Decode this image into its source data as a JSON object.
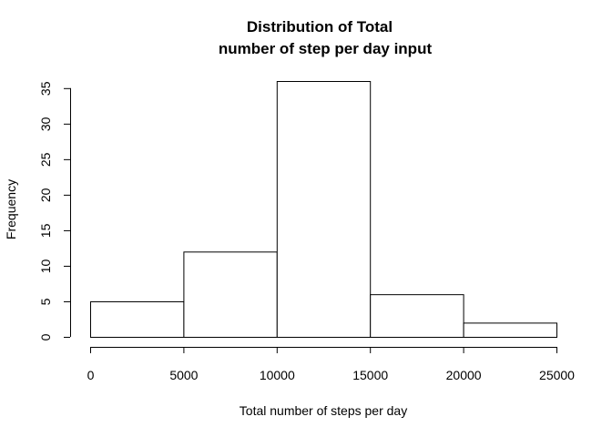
{
  "chart_data": {
    "type": "bar",
    "title_line1": "Distribution of Total",
    "title_line2": "number of step per day input",
    "xlabel": "Total number of steps per day",
    "ylabel": "Frequency",
    "bins": [
      {
        "from": 0,
        "to": 5000,
        "count": 5
      },
      {
        "from": 5000,
        "to": 10000,
        "count": 12
      },
      {
        "from": 10000,
        "to": 15000,
        "count": 36
      },
      {
        "from": 15000,
        "to": 20000,
        "count": 6
      },
      {
        "from": 20000,
        "to": 25000,
        "count": 2
      }
    ],
    "xlim": [
      0,
      25000
    ],
    "ylim": [
      0,
      36
    ],
    "x_ticks": [
      0,
      5000,
      10000,
      15000,
      20000,
      25000
    ],
    "y_ticks": [
      0,
      5,
      10,
      15,
      20,
      25,
      30,
      35
    ],
    "grid": false
  }
}
